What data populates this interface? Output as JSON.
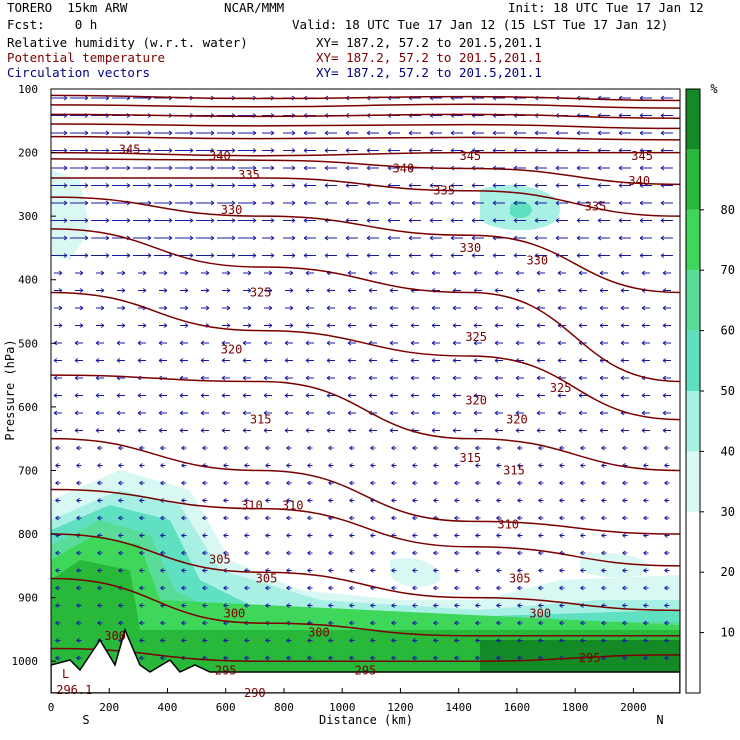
{
  "header": {
    "model": "TORERO  15km ARW",
    "org": "NCAR/MMM",
    "init": "Init: 18 UTC Tue 17 Jan 12",
    "fcst": "Fcst:    0 h",
    "valid": "Valid: 18 UTC Tue 17 Jan 12 (15 LST Tue 17 Jan 12)",
    "fields": [
      {
        "name": "Relative humidity (w.r.t. water)",
        "xy": "XY= 187.2, 57.2 to 201.5,201.1"
      },
      {
        "name": "Potential temperature",
        "xy": "XY= 187.2, 57.2 to 201.5,201.1"
      },
      {
        "name": "Circulation vectors",
        "xy": "XY= 187.2, 57.2 to 201.5,201.1"
      }
    ]
  },
  "colors": {
    "theta_line": "#7a0000",
    "vector": "#1a1aa0",
    "rh_30": "#d9f7f3",
    "rh_40": "#a8f0e4",
    "rh_50": "#5fe0c0",
    "rh_60": "#59dc97",
    "rh_70": "#3fd75a",
    "rh_80": "#28b83a",
    "rh_90": "#148a26"
  },
  "chart_data": {
    "type": "contour",
    "xlabel": "Distance (km)",
    "ylabel": "Pressure (hPa)",
    "x_ticks": [
      0,
      200,
      400,
      600,
      800,
      1000,
      1200,
      1400,
      1600,
      1800,
      2000
    ],
    "y_ticks": [
      100,
      200,
      300,
      400,
      500,
      600,
      700,
      800,
      900,
      1000
    ],
    "xlim": [
      0,
      2160
    ],
    "ylim": [
      1050,
      100
    ],
    "x_end_labels": {
      "left": "S",
      "right": "N"
    },
    "colorbar": {
      "unit": "%",
      "ticks": [
        10,
        20,
        30,
        40,
        50,
        60,
        70,
        80
      ],
      "range": [
        0,
        100
      ],
      "levels": [
        {
          "from": 0,
          "to": 30,
          "color": "#ffffff"
        },
        {
          "from": 30,
          "to": 40,
          "color": "#d9f7f3"
        },
        {
          "from": 40,
          "to": 50,
          "color": "#a8f0e4"
        },
        {
          "from": 50,
          "to": 60,
          "color": "#5fe0c0"
        },
        {
          "from": 60,
          "to": 70,
          "color": "#59dc97"
        },
        {
          "from": 70,
          "to": 80,
          "color": "#3fd75a"
        },
        {
          "from": 80,
          "to": 90,
          "color": "#28b83a"
        },
        {
          "from": 90,
          "to": 100,
          "color": "#148a26"
        }
      ]
    },
    "theta_labels": [
      {
        "text": "345",
        "x": 270,
        "p": 195
      },
      {
        "text": "340",
        "x": 580,
        "p": 205
      },
      {
        "text": "345",
        "x": 1440,
        "p": 205
      },
      {
        "text": "345",
        "x": 2030,
        "p": 205
      },
      {
        "text": "340",
        "x": 1210,
        "p": 225
      },
      {
        "text": "340",
        "x": 2020,
        "p": 245
      },
      {
        "text": "335",
        "x": 680,
        "p": 235
      },
      {
        "text": "335",
        "x": 1350,
        "p": 260
      },
      {
        "text": "335",
        "x": 1870,
        "p": 285
      },
      {
        "text": "330",
        "x": 620,
        "p": 290
      },
      {
        "text": "330",
        "x": 1440,
        "p": 350
      },
      {
        "text": "330",
        "x": 1670,
        "p": 370
      },
      {
        "text": "325",
        "x": 720,
        "p": 420
      },
      {
        "text": "325",
        "x": 1460,
        "p": 490
      },
      {
        "text": "325",
        "x": 1750,
        "p": 570
      },
      {
        "text": "320",
        "x": 620,
        "p": 510
      },
      {
        "text": "320",
        "x": 1460,
        "p": 590
      },
      {
        "text": "320",
        "x": 1600,
        "p": 620
      },
      {
        "text": "315",
        "x": 720,
        "p": 620
      },
      {
        "text": "315",
        "x": 1440,
        "p": 680
      },
      {
        "text": "315",
        "x": 1590,
        "p": 700
      },
      {
        "text": "310",
        "x": 690,
        "p": 755
      },
      {
        "text": "310",
        "x": 830,
        "p": 755
      },
      {
        "text": "310",
        "x": 1570,
        "p": 785
      },
      {
        "text": "305",
        "x": 580,
        "p": 840
      },
      {
        "text": "305",
        "x": 740,
        "p": 870
      },
      {
        "text": "305",
        "x": 1610,
        "p": 870
      },
      {
        "text": "300",
        "x": 630,
        "p": 925
      },
      {
        "text": "300",
        "x": 920,
        "p": 955
      },
      {
        "text": "300",
        "x": 1680,
        "p": 925
      },
      {
        "text": "300",
        "x": 220,
        "p": 960
      },
      {
        "text": "295",
        "x": 600,
        "p": 1015
      },
      {
        "text": "295",
        "x": 1080,
        "p": 1015
      },
      {
        "text": "295",
        "x": 1850,
        "p": 995
      },
      {
        "text": "290",
        "x": 700,
        "p": 1050
      },
      {
        "text": "L",
        "x": 50,
        "p": 1020
      },
      {
        "text": "296.1",
        "x": 80,
        "p": 1045
      }
    ],
    "theta_lines": [
      {
        "p": [
          110,
          115,
          112,
          118
        ]
      },
      {
        "p": [
          125,
          128,
          124,
          130
        ]
      },
      {
        "p": [
          140,
          143,
          140,
          146
        ]
      },
      {
        "p": [
          155,
          158,
          156,
          162
        ]
      },
      {
        "p": [
          175,
          178,
          176,
          180
        ]
      },
      {
        "p": [
          200,
          205,
          200,
          200
        ]
      },
      {
        "p": [
          210,
          212,
          225,
          250
        ]
      },
      {
        "p": [
          240,
          240,
          260,
          300
        ]
      },
      {
        "p": [
          270,
          300,
          330,
          420
        ]
      },
      {
        "p": [
          320,
          380,
          420,
          560
        ]
      },
      {
        "p": [
          420,
          480,
          520,
          620
        ]
      },
      {
        "p": [
          550,
          560,
          650,
          700
        ]
      },
      {
        "p": [
          650,
          700,
          780,
          800
        ]
      },
      {
        "p": [
          730,
          760,
          820,
          850
        ]
      },
      {
        "p": [
          800,
          860,
          900,
          920
        ]
      },
      {
        "p": [
          870,
          940,
          960,
          960
        ]
      },
      {
        "p": [
          980,
          1000,
          1000,
          990
        ]
      }
    ]
  }
}
